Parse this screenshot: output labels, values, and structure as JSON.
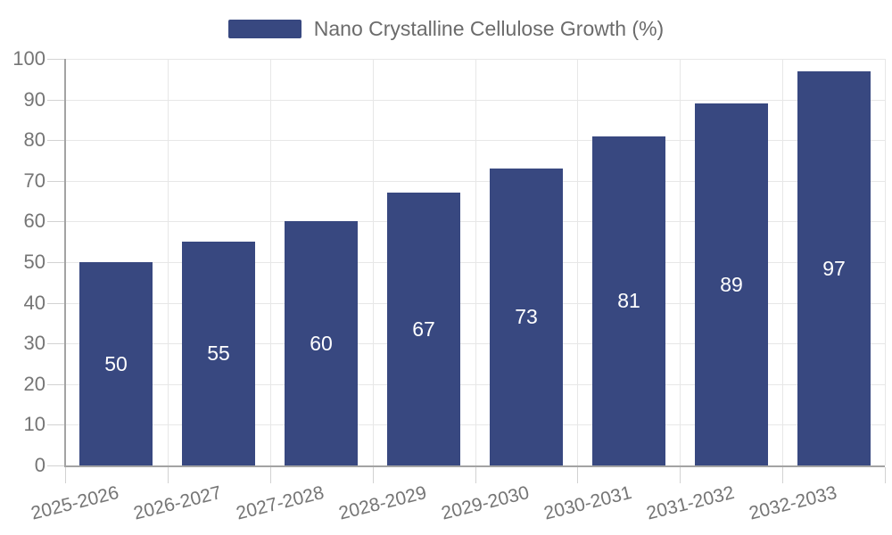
{
  "legend": {
    "label": "Nano Crystalline Cellulose Growth (%)"
  },
  "chart_data": {
    "type": "bar",
    "title": "",
    "series_name": "Nano Crystalline Cellulose Growth (%)",
    "categories": [
      "2025-2026",
      "2026-2027",
      "2027-2028",
      "2028-2029",
      "2029-2030",
      "2030-2031",
      "2031-2032",
      "2032-2033"
    ],
    "values": [
      50,
      55,
      60,
      67,
      73,
      81,
      89,
      97
    ],
    "xlabel": "",
    "ylabel": "",
    "ylim": [
      0,
      100
    ],
    "ytick_step": 10,
    "yticks": [
      0,
      10,
      20,
      30,
      40,
      50,
      60,
      70,
      80,
      90,
      100
    ],
    "grid": true,
    "legend_position": "top-center",
    "value_labels_position": "inside-center",
    "xtick_rotation_deg": -14,
    "colors": {
      "bar": "#384880",
      "value_label": "#ffffff",
      "axis_label": "#757575",
      "legend_text": "#6b6b6b",
      "grid_line": "#e7e7e7",
      "axis_line": "#a3a3a3",
      "tick_line": "#d2d2d2",
      "background": "#ffffff"
    }
  }
}
